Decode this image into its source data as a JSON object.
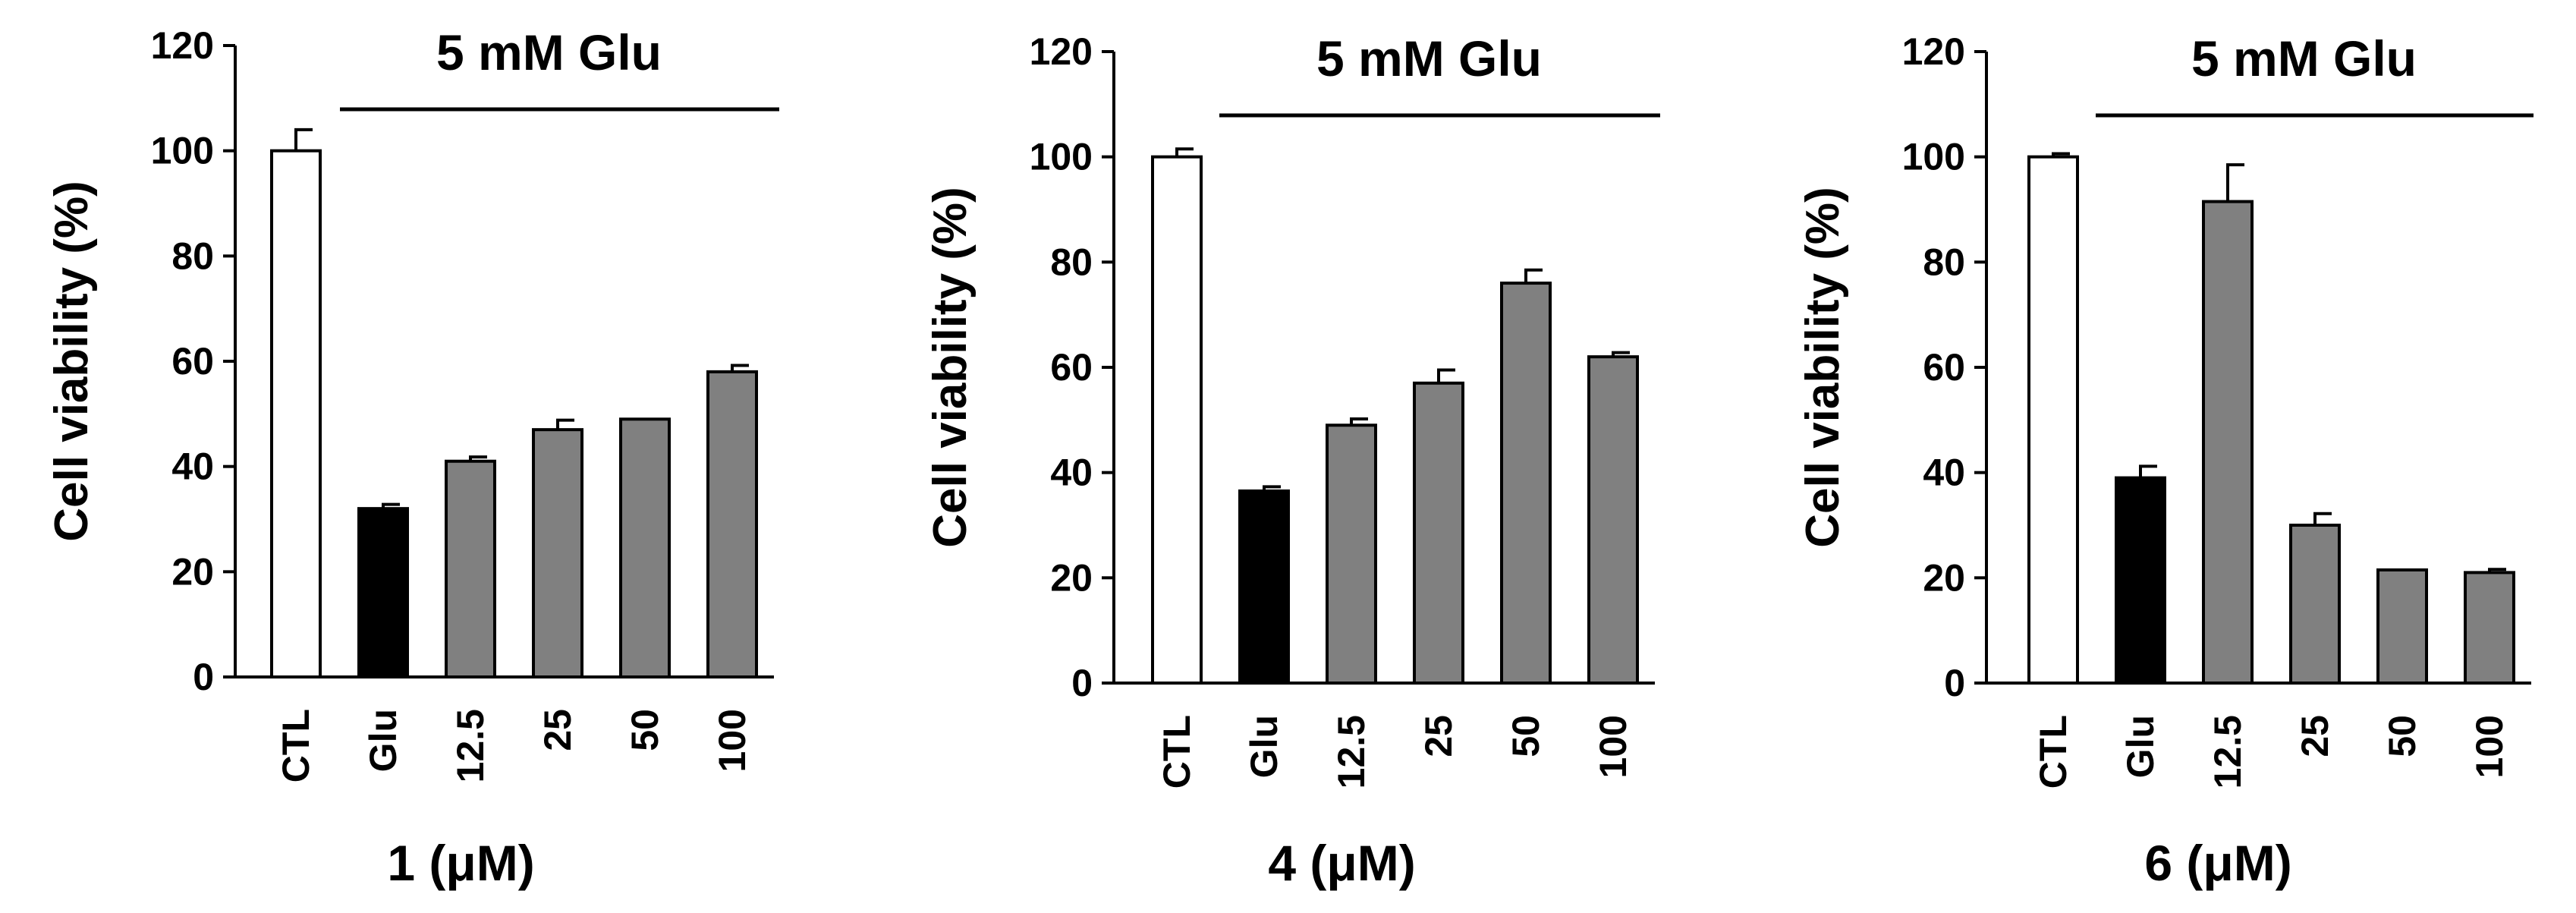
{
  "chart_data": [
    {
      "type": "bar",
      "ylabel": "Cell viability (%)",
      "xlabel": "1 (μM)",
      "treatment_label": "5 mM Glu",
      "ylim": [
        0,
        120
      ],
      "yticks": [
        "0",
        "20",
        "40",
        "60",
        "80",
        "100",
        "120"
      ],
      "categories": [
        "CTL",
        "Glu",
        "12.5",
        "25",
        "50",
        "100"
      ],
      "values": [
        100,
        32,
        41,
        47,
        49,
        58
      ],
      "errors": [
        4,
        0.8,
        0.8,
        1.8,
        0,
        1.2
      ],
      "bar_fills": [
        "#ffffff",
        "#000000",
        "#808080",
        "#808080",
        "#808080",
        "#808080"
      ]
    },
    {
      "type": "bar",
      "ylabel": "Cell viability (%)",
      "xlabel": "4 (μM)",
      "treatment_label": "5 mM Glu",
      "ylim": [
        0,
        120
      ],
      "yticks": [
        "0",
        "20",
        "40",
        "60",
        "80",
        "100",
        "120"
      ],
      "categories": [
        "CTL",
        "Glu",
        "12.5",
        "25",
        "50",
        "100"
      ],
      "values": [
        100,
        36.5,
        49,
        57,
        76,
        62
      ],
      "errors": [
        1.5,
        0.8,
        1.2,
        2.5,
        2.5,
        0.8
      ],
      "bar_fills": [
        "#ffffff",
        "#000000",
        "#808080",
        "#808080",
        "#808080",
        "#808080"
      ]
    },
    {
      "type": "bar",
      "ylabel": "Cell viability (%)",
      "xlabel": "6 (μM)",
      "treatment_label": "5 mM Glu",
      "ylim": [
        0,
        120
      ],
      "yticks": [
        "0",
        "20",
        "40",
        "60",
        "80",
        "100",
        "120"
      ],
      "categories": [
        "CTL",
        "Glu",
        "12.5",
        "25",
        "50",
        "100"
      ],
      "values": [
        100,
        39,
        91.5,
        30,
        21.5,
        21
      ],
      "errors": [
        0.6,
        2.2,
        7,
        2.2,
        0,
        0.6
      ],
      "bar_fills": [
        "#ffffff",
        "#000000",
        "#808080",
        "#808080",
        "#808080",
        "#808080"
      ]
    }
  ]
}
